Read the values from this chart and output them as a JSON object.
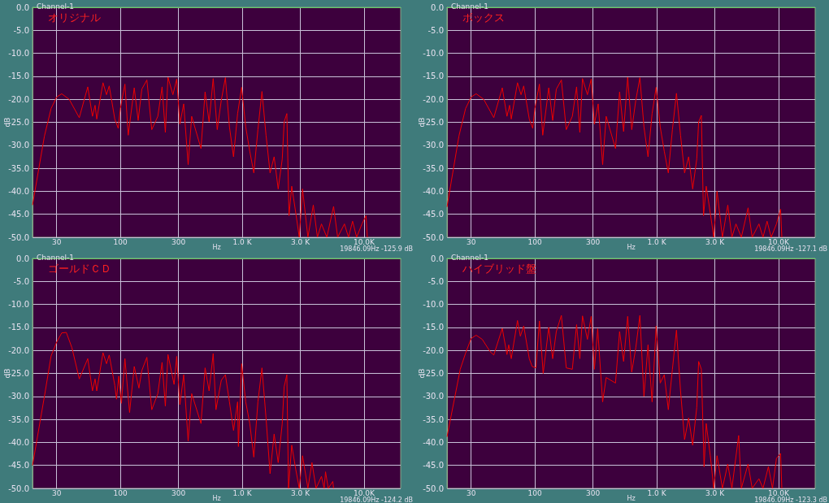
{
  "chart_data": [
    {
      "type": "line",
      "title": "オリジナル",
      "subtitle": "Channel-1",
      "xlabel": "Hz",
      "ylabel": "dB",
      "annotations": [
        "19846.09Hz -125.9 dB"
      ],
      "log": "x",
      "grid": true,
      "marker": "none",
      "xlim": [
        19,
        20000
      ],
      "ylim": [
        -50,
        0
      ],
      "xticks": [
        30,
        100,
        300,
        {
          "value": 1000,
          "label": "1.0 K"
        },
        {
          "value": 3000,
          "label": "3.0 K"
        },
        {
          "value": 10000,
          "label": "10.0K"
        }
      ],
      "yticks": [
        {
          "value": -50,
          "label": "-50.0"
        },
        {
          "value": -45,
          "label": "-45.0"
        },
        {
          "value": -40,
          "label": "-40.0"
        },
        {
          "value": -35,
          "label": "-35.0"
        },
        {
          "value": -30,
          "label": "-30.0"
        },
        {
          "value": -25,
          "label": "-25.0"
        },
        {
          "value": -20,
          "label": "-20.0"
        },
        {
          "value": -15,
          "label": "-15.0"
        },
        {
          "value": -10,
          "label": "-10.0"
        },
        {
          "value": -5,
          "label": "-5.0"
        },
        {
          "value": 0,
          "label": "0.0"
        }
      ],
      "series": [
        {
          "color": "#ee0000",
          "x": [
            19,
            23.8,
            27,
            30,
            33,
            38,
            46,
            54,
            59,
            62,
            64,
            72,
            77,
            81,
            90,
            96,
            100,
            109,
            116,
            130,
            140,
            150,
            165,
            181,
            203,
            220,
            234,
            246,
            270,
            290,
            308,
            331,
            360,
            385,
            459,
            496,
            535,
            578,
            624,
            674,
            728,
            786,
            849,
            917,
            990,
            1069,
            1154,
            1246,
            1346,
            1453,
            1569,
            1694,
            1829,
            1975,
            2132,
            2210,
            2326,
            2423,
            2551,
            2753,
            2941,
            3129,
            3463,
            3834,
            4144,
            4474,
            4955,
            5627,
            6078,
            6907,
            7460,
            8058,
            8703,
            9620,
            10390,
            10650
          ],
          "values": [
            -43,
            -28,
            -22,
            -19.5,
            -18.8,
            -20,
            -24,
            -17.3,
            -23.7,
            -21.3,
            -24.3,
            -16.4,
            -19,
            -17.1,
            -24.3,
            -26.3,
            -22,
            -16.7,
            -27.8,
            -17.5,
            -24.6,
            -17.8,
            -15.8,
            -26.6,
            -23.7,
            -17.3,
            -27.2,
            -15.2,
            -19,
            -15.6,
            -25.4,
            -21,
            -34.2,
            -23.7,
            -30.7,
            -18.4,
            -24.9,
            -15.5,
            -26.6,
            -20.2,
            -15.3,
            -26,
            -32.5,
            -23.1,
            -17.4,
            -26,
            -31.3,
            -36,
            -26.6,
            -18.3,
            -27.8,
            -36,
            -32.5,
            -39.5,
            -33,
            -24.9,
            -23.1,
            -45.3,
            -38.9,
            -44.7,
            -50,
            -39.5,
            -50,
            -43,
            -50,
            -47.1,
            -50,
            -43.3,
            -50,
            -47.1,
            -50,
            -46.5,
            -50,
            -47.1,
            -45.3,
            -50
          ]
        }
      ]
    },
    {
      "type": "line",
      "title": "ボックス",
      "subtitle": "Channel-1",
      "xlabel": "Hz",
      "ylabel": "dB",
      "annotations": [
        "19846.09Hz -127.1 dB"
      ],
      "log": "x",
      "grid": true,
      "marker": "none",
      "xlim": [
        19,
        20000
      ],
      "ylim": [
        -50,
        0
      ],
      "xticks": [
        30,
        100,
        300,
        {
          "value": 1000,
          "label": "1.0 K"
        },
        {
          "value": 3000,
          "label": "3.0 K"
        },
        {
          "value": 10000,
          "label": "10.0K"
        }
      ],
      "yticks": [
        {
          "value": -50,
          "label": "-50.0"
        },
        {
          "value": -45,
          "label": "-45.0"
        },
        {
          "value": -40,
          "label": "-40.0"
        },
        {
          "value": -35,
          "label": "-35.0"
        },
        {
          "value": -30,
          "label": "-30.0"
        },
        {
          "value": -25,
          "label": "-25.0"
        },
        {
          "value": -20,
          "label": "-20.0"
        },
        {
          "value": -15,
          "label": "-15.0"
        },
        {
          "value": -10,
          "label": "-10.0"
        },
        {
          "value": -5,
          "label": "-5.0"
        },
        {
          "value": 0,
          "label": "0.0"
        }
      ],
      "series": [
        {
          "color": "#ee0000",
          "x": [
            19,
            23.8,
            27,
            30,
            33,
            38,
            46,
            54,
            59,
            62,
            64,
            72,
            77,
            81,
            90,
            96,
            100,
            109,
            116,
            130,
            140,
            150,
            165,
            181,
            203,
            220,
            234,
            246,
            270,
            290,
            308,
            331,
            360,
            385,
            459,
            496,
            535,
            578,
            624,
            674,
            728,
            786,
            849,
            917,
            990,
            1069,
            1154,
            1246,
            1346,
            1453,
            1569,
            1694,
            1829,
            1975,
            2132,
            2210,
            2326,
            2423,
            2551,
            2753,
            2941,
            3129,
            3463,
            3834,
            4144,
            4474,
            4955,
            5627,
            6078,
            6907,
            7460,
            8058,
            8703,
            9620,
            10390,
            10650
          ],
          "values": [
            -43.4,
            -28,
            -22,
            -19.5,
            -18.8,
            -20,
            -24,
            -17.5,
            -23.7,
            -21.3,
            -24.3,
            -16.4,
            -19,
            -17.1,
            -24.3,
            -26.3,
            -22,
            -16.7,
            -27.8,
            -17.5,
            -24.6,
            -17.8,
            -15.8,
            -26.6,
            -23.7,
            -17.3,
            -27.2,
            -15.5,
            -19,
            -15.6,
            -25.4,
            -21,
            -34.2,
            -23.7,
            -30.7,
            -18.4,
            -27,
            -15.2,
            -26.6,
            -20.2,
            -15.3,
            -26,
            -32.5,
            -23.1,
            -17.4,
            -26,
            -31.3,
            -36,
            -26.6,
            -18.7,
            -27.8,
            -36,
            -32.5,
            -39.5,
            -33,
            -24.9,
            -23.5,
            -45.3,
            -38.9,
            -44.7,
            -50,
            -40,
            -50,
            -43,
            -50,
            -47.1,
            -50,
            -43.6,
            -50,
            -47.1,
            -50,
            -46.5,
            -50,
            -47.1,
            -43.9,
            -50
          ]
        }
      ]
    },
    {
      "type": "line",
      "title": "ゴールドＣＤ",
      "subtitle": "Channel-1",
      "xlabel": "Hz",
      "ylabel": "dB",
      "annotations": [
        "19846.09Hz -124.2 dB"
      ],
      "log": "x",
      "grid": true,
      "marker": "none",
      "xlim": [
        19,
        20000
      ],
      "ylim": [
        -50,
        0
      ],
      "xticks": [
        30,
        100,
        300,
        {
          "value": 1000,
          "label": "1.0 K"
        },
        {
          "value": 3000,
          "label": "3.0 K"
        },
        {
          "value": 10000,
          "label": "10.0K"
        }
      ],
      "yticks": [
        {
          "value": -50,
          "label": "-50.0"
        },
        {
          "value": -45,
          "label": "-45.0"
        },
        {
          "value": -40,
          "label": "-40.0"
        },
        {
          "value": -35,
          "label": "-35.0"
        },
        {
          "value": -30,
          "label": "-30.0"
        },
        {
          "value": -25,
          "label": "-25.0"
        },
        {
          "value": -20,
          "label": "-20.0"
        },
        {
          "value": -15,
          "label": "-15.0"
        },
        {
          "value": -10,
          "label": "-10.0"
        },
        {
          "value": -5,
          "label": "-5.0"
        },
        {
          "value": 0,
          "label": "0.0"
        }
      ],
      "series": [
        {
          "color": "#ee0000",
          "x": [
            19,
            23.8,
            27,
            30,
            33,
            36,
            40,
            46,
            54,
            59,
            62,
            64,
            72,
            77,
            81,
            90,
            93,
            97,
            102,
            109,
            119,
            130,
            142,
            150,
            165,
            181,
            203,
            220,
            234,
            246,
            276,
            290,
            308,
            331,
            360,
            385,
            459,
            496,
            535,
            578,
            609,
            674,
            728,
            786,
            849,
            917,
            931,
            990,
            1069,
            1154,
            1246,
            1346,
            1453,
            1569,
            1694,
            1829,
            1975,
            2132,
            2210,
            2326,
            2400,
            2551,
            2753,
            2941,
            3129,
            3463,
            3739,
            4040,
            4474,
            4709,
            4833,
            5085,
            5543,
            5627
          ],
          "values": [
            -45,
            -30,
            -21.2,
            -18.2,
            -16.2,
            -16.1,
            -19.4,
            -26.2,
            -21.8,
            -28.8,
            -26.2,
            -28.8,
            -20.5,
            -22.9,
            -21,
            -27.6,
            -30.6,
            -25.6,
            -31.5,
            -21.8,
            -33.5,
            -23.5,
            -28.2,
            -24.4,
            -21.5,
            -32.9,
            -29.4,
            -22.6,
            -32.1,
            -20.9,
            -27.4,
            -21.3,
            -31.8,
            -25.3,
            -39.7,
            -29.4,
            -35.9,
            -23.8,
            -28.8,
            -20.7,
            -32.9,
            -26.5,
            -25.3,
            -31.2,
            -37.4,
            -31.2,
            -40.9,
            -22.9,
            -31.2,
            -35.9,
            -43.2,
            -31.2,
            -23.8,
            -34.7,
            -46.8,
            -38.2,
            -44.4,
            -35.9,
            -27.9,
            -25.3,
            -50,
            -40.6,
            -45.9,
            -50,
            -42.9,
            -50,
            -44.4,
            -50,
            -47.4,
            -50,
            -46.4,
            -50,
            -48.5,
            -50
          ]
        }
      ]
    },
    {
      "type": "line",
      "title": "ハイブリッド盤",
      "subtitle": "Channel-1",
      "xlabel": "Hz",
      "ylabel": "dB",
      "annotations": [
        "19846.09Hz -123.3 dB"
      ],
      "log": "x",
      "grid": true,
      "marker": "none",
      "xlim": [
        19,
        20000
      ],
      "ylim": [
        -50,
        0
      ],
      "xticks": [
        30,
        100,
        300,
        {
          "value": 1000,
          "label": "1.0 K"
        },
        {
          "value": 3000,
          "label": "3.0 K"
        },
        {
          "value": 10000,
          "label": "10.0K"
        }
      ],
      "yticks": [
        {
          "value": -50,
          "label": "-50.0"
        },
        {
          "value": -45,
          "label": "-45.0"
        },
        {
          "value": -40,
          "label": "-40.0"
        },
        {
          "value": -35,
          "label": "-35.0"
        },
        {
          "value": -30,
          "label": "-30.0"
        },
        {
          "value": -25,
          "label": "-25.0"
        },
        {
          "value": -20,
          "label": "-20.0"
        },
        {
          "value": -15,
          "label": "-15.0"
        },
        {
          "value": -10,
          "label": "-10.0"
        },
        {
          "value": -5,
          "label": "-5.0"
        },
        {
          "value": 0,
          "label": "0.0"
        }
      ],
      "series": [
        {
          "color": "#ee0000",
          "x": [
            19,
            24.4,
            27,
            30,
            33,
            37,
            43,
            46,
            54,
            59,
            61,
            64,
            72,
            76,
            81,
            90,
            95,
            102,
            109,
            117,
            130,
            140,
            150,
            165,
            181,
            203,
            220,
            234,
            246,
            270,
            290,
            308,
            328,
            360,
            385,
            459,
            496,
            535,
            578,
            624,
            674,
            728,
            786,
            849,
            917,
            990,
            1069,
            1154,
            1246,
            1346,
            1453,
            1569,
            1694,
            1829,
            1975,
            2132,
            2210,
            2326,
            2450,
            2551,
            2753,
            2941,
            3129,
            3463,
            3834,
            4144,
            4709,
            4955,
            5627,
            6078,
            6907,
            7460,
            8260,
            8922,
            9620,
            10390,
            10650
          ],
          "values": [
            -38.8,
            -24.1,
            -20.6,
            -17.4,
            -16.7,
            -17.6,
            -20.3,
            -21,
            -15.2,
            -20.9,
            -18.8,
            -21.8,
            -13.5,
            -16.9,
            -14.7,
            -21.8,
            -23.5,
            -23.8,
            -13.6,
            -25,
            -15,
            -21.8,
            -15.9,
            -12.4,
            -23.8,
            -24.1,
            -14.4,
            -21.8,
            -12.5,
            -17.6,
            -12.6,
            -24.1,
            -15.3,
            -31.2,
            -25.9,
            -27.1,
            -15.9,
            -22.4,
            -12.6,
            -24.7,
            -19.4,
            -12.4,
            -30,
            -18.8,
            -31.2,
            -14.7,
            -27.1,
            -25.3,
            -32.9,
            -24.1,
            -15.6,
            -28.8,
            -39.4,
            -34.7,
            -40.6,
            -32.4,
            -22.4,
            -24.1,
            -45.3,
            -35.9,
            -42.9,
            -50,
            -42.9,
            -50,
            -44.7,
            -50,
            -38.5,
            -50,
            -44.7,
            -50,
            -47.9,
            -50,
            -45.3,
            -50,
            -43.5,
            -42.4,
            -50
          ]
        }
      ]
    }
  ]
}
